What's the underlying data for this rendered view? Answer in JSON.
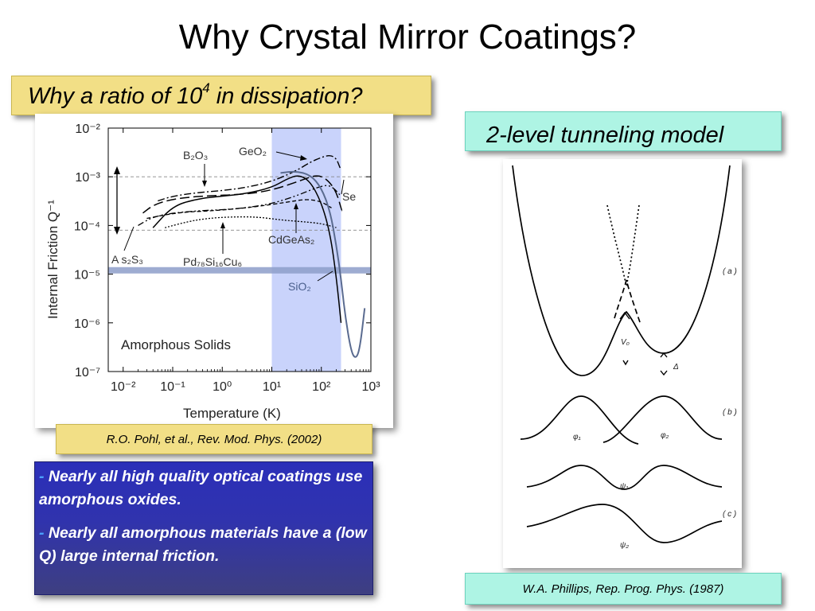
{
  "slide": {
    "title": "Why Crystal Mirror Coatings?",
    "question_callout": {
      "text": "Why a ratio of 10",
      "superscript": "4",
      "text_after": " in dissipation?"
    },
    "model_callout": "2-level tunneling model",
    "left_caption": "R.O. Pohl, et al., Rev. Mod. Phys. (2002)",
    "right_caption": "W.A. Phillips, Rep. Prog. Phys. (1987)",
    "bullets": [
      {
        "dash": "-",
        "text": " Nearly all high quality optical coatings use amorphous oxides."
      },
      {
        "dash": "-",
        "text": " Nearly all amorphous materials have a (low Q) large internal friction."
      }
    ]
  },
  "chart_data": [
    {
      "type": "line",
      "title": "Amorphous Solids",
      "xlabel": "Temperature (K)",
      "ylabel": "Internal Friction  Q⁻¹",
      "xscale": "log",
      "yscale": "log",
      "xlim": [
        0.005,
        1000
      ],
      "ylim": [
        1e-07,
        0.01
      ],
      "x_ticks": [
        "10⁻²",
        "10⁻¹",
        "10⁰",
        "10¹",
        "10²",
        "10³"
      ],
      "y_ticks": [
        "10⁻⁷",
        "10⁻⁶",
        "10⁻⁵",
        "10⁻⁴",
        "10⁻³",
        "10⁻²"
      ],
      "x_tick_values": [
        0.01,
        0.1,
        1,
        10,
        100,
        1000
      ],
      "y_tick_values": [
        1e-07,
        1e-06,
        1e-05,
        0.0001,
        0.001,
        0.01
      ],
      "reference_lines_y": [
        0.001,
        8e-05
      ],
      "highlight_band_x": [
        10,
        250
      ],
      "highlight_color": "#c9d3fb",
      "band_level_y": 1.2e-05,
      "band_color": "#8d9ec9",
      "series": [
        {
          "name": "B₂O₃",
          "style": "long-dash",
          "x": [
            0.025,
            0.04,
            0.08,
            0.2,
            0.6,
            2,
            6,
            15,
            40,
            80,
            130,
            200,
            260
          ],
          "y": [
            0.00018,
            0.00026,
            0.00033,
            0.00038,
            0.00041,
            0.00043,
            0.00048,
            0.0006,
            0.00085,
            0.0011,
            0.0009,
            0.0005,
            0.0002
          ]
        },
        {
          "name": "GeO₂",
          "style": "dash-dot",
          "x": [
            0.05,
            0.1,
            0.3,
            1,
            3,
            10,
            30,
            60,
            100,
            150,
            200,
            240
          ],
          "y": [
            0.00032,
            0.0004,
            0.00047,
            0.00052,
            0.0006,
            0.0008,
            0.0013,
            0.002,
            0.0025,
            0.0028,
            0.0024,
            0.0015
          ]
        },
        {
          "name": "Se",
          "style": "solid",
          "x": [
            0.04,
            0.1,
            0.3,
            1,
            3,
            10,
            20,
            35,
            60,
            100,
            150,
            200,
            250
          ],
          "y": [
            9e-05,
            0.00025,
            0.00035,
            0.0004,
            0.00045,
            0.0006,
            0.0009,
            0.0011,
            0.0008,
            0.0003,
            7e-05,
            9e-06,
            1e-06
          ]
        },
        {
          "name": "A s₂S₃",
          "style": "dash-dot-dot",
          "x": [
            0.02,
            0.04,
            0.1,
            0.3,
            1,
            3,
            10,
            30,
            80,
            150,
            250
          ],
          "y": [
            0.0001,
            0.00015,
            0.00018,
            0.0002,
            0.00021,
            0.00023,
            0.00028,
            0.0004,
            0.0006,
            0.0007,
            0.0004
          ]
        },
        {
          "name": "Pd₇₈Si₁₆Cu₆",
          "style": "short-dash",
          "x": [
            0.03,
            0.08,
            0.2,
            0.6,
            2,
            6,
            20,
            50,
            100,
            160
          ],
          "y": [
            0.00014,
            0.00017,
            0.00019,
            0.0002,
            0.00022,
            0.00025,
            0.0003,
            0.00035,
            0.00031,
            0.00023
          ]
        },
        {
          "name": "CdGeAs₂",
          "style": "dotted",
          "x": [
            0.07,
            0.2,
            0.5,
            1.5,
            5,
            15,
            40,
            100,
            200
          ],
          "y": [
            9e-05,
            0.00012,
            0.00014,
            0.00015,
            0.00015,
            0.00013,
            0.00012,
            0.00011,
            9e-05
          ]
        },
        {
          "name": "SiO₂",
          "style": "solid-gray",
          "x": [
            15,
            30,
            60,
            100,
            150,
            200,
            250,
            300,
            400,
            500,
            600,
            750
          ],
          "y": [
            0.0012,
            0.0013,
            0.0011,
            0.0006,
            0.0002,
            4e-05,
            8e-06,
            1.5e-06,
            2.5e-07,
            1.8e-07,
            3e-07,
            2e-06
          ]
        }
      ]
    },
    {
      "type": "diagram",
      "title": "",
      "panel_labels": [
        "( a )",
        "( b )",
        "( c )"
      ],
      "symbols": {
        "v0": "V₀",
        "delta": "Δ",
        "phi1": "φ₁",
        "phi2": "φ₂",
        "psi1": "ψ₁",
        "psi2": "ψ₂"
      }
    }
  ]
}
